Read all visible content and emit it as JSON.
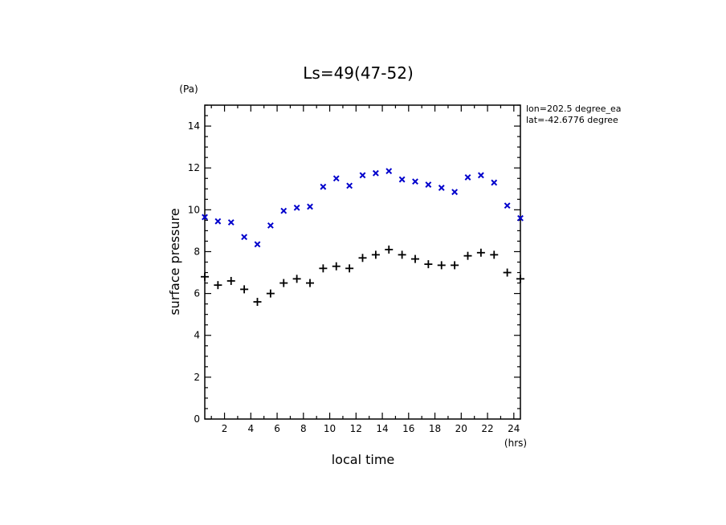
{
  "chart_data": {
    "type": "scatter",
    "title": "Ls=49(47-52)",
    "xlabel": "local time",
    "ylabel": "surface pressure",
    "x_unit": "(hrs)",
    "y_unit": "(Pa)",
    "annotations": [
      "lon=202.5 degree_ea",
      "lat=-42.6776 degree"
    ],
    "xlim": [
      0.5,
      24.5
    ],
    "ylim": [
      0,
      15
    ],
    "x_ticks": [
      2,
      4,
      6,
      8,
      10,
      12,
      14,
      16,
      18,
      20,
      22,
      24
    ],
    "y_ticks": [
      0,
      2,
      4,
      6,
      8,
      10,
      12,
      14
    ],
    "x": [
      0.5,
      1.5,
      2.5,
      3.5,
      4.5,
      5.5,
      6.5,
      7.5,
      8.5,
      9.5,
      10.5,
      11.5,
      12.5,
      13.5,
      14.5,
      15.5,
      16.5,
      17.5,
      18.5,
      19.5,
      20.5,
      21.5,
      22.5,
      23.5,
      24.5
    ],
    "series": [
      {
        "marker": "x",
        "color": "#0000cc",
        "values": [
          9.65,
          9.45,
          9.4,
          8.7,
          8.35,
          9.25,
          9.95,
          10.1,
          10.15,
          11.1,
          11.5,
          11.15,
          11.65,
          11.75,
          11.85,
          11.45,
          11.35,
          11.2,
          11.05,
          10.85,
          11.55,
          11.65,
          11.3,
          10.2,
          9.6
        ]
      },
      {
        "marker": "+",
        "color": "#000000",
        "values": [
          6.8,
          6.4,
          6.6,
          6.2,
          5.6,
          6.0,
          6.5,
          6.7,
          6.5,
          7.2,
          7.3,
          7.2,
          7.7,
          7.85,
          8.1,
          7.85,
          7.65,
          7.4,
          7.35,
          7.35,
          7.8,
          7.95,
          7.85,
          7.0,
          6.7
        ]
      }
    ]
  }
}
